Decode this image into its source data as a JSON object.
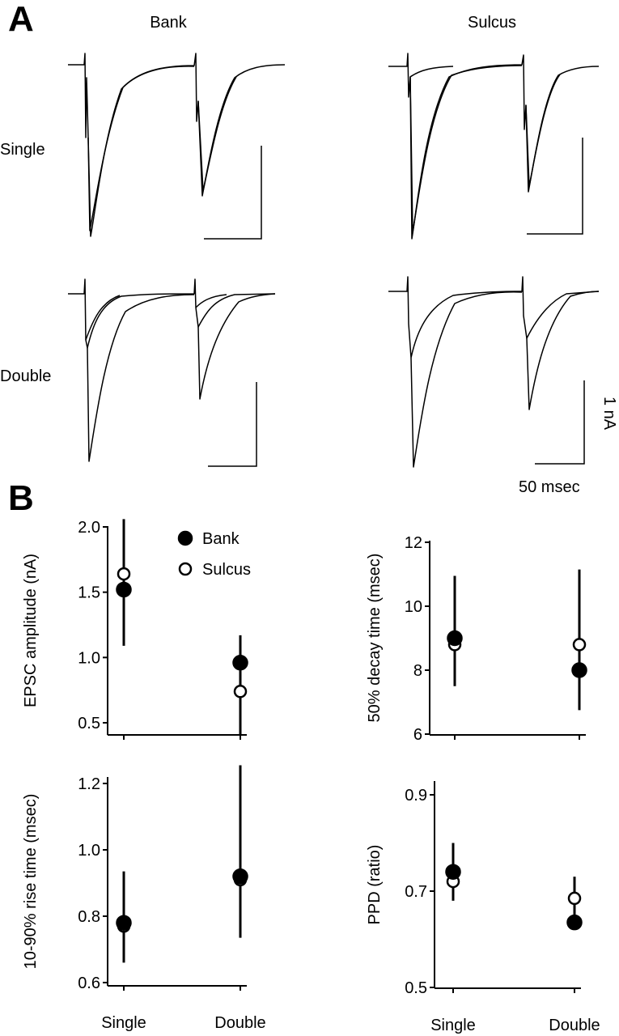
{
  "panel_a": {
    "label": "A",
    "column_labels": [
      "Bank",
      "Sulcus"
    ],
    "row_labels": [
      "Single",
      "Double"
    ],
    "scale_bar": {
      "y_label": "1 nA",
      "x_label": "50 msec"
    }
  },
  "panel_b": {
    "label": "B"
  },
  "legend": [
    "Bank",
    "Sulcus"
  ],
  "chart_data": [
    {
      "type": "scatter",
      "ylabel": "EPSC amplitude (nA)",
      "categories": [
        "Single",
        "Double"
      ],
      "ylim": [
        0.4,
        2.1
      ],
      "yticks": [
        "0.5",
        "1.0",
        "1.5",
        "2.0"
      ],
      "series": [
        {
          "name": "Bank",
          "marker": "filled",
          "values": [
            1.52,
            0.96
          ],
          "err_low": [
            1.09,
            0.4
          ],
          "err_high": [
            2.06,
            1.17
          ]
        },
        {
          "name": "Sulcus",
          "marker": "open",
          "values": [
            1.64,
            0.74
          ],
          "err_low": [
            1.09,
            0.4
          ],
          "err_high": [
            2.06,
            1.17
          ]
        }
      ]
    },
    {
      "type": "scatter",
      "ylabel": "50% decay time (msec)",
      "categories": [
        "Single",
        "Double"
      ],
      "ylim": [
        6,
        12
      ],
      "yticks": [
        "6",
        "8",
        "10",
        "12"
      ],
      "series": [
        {
          "name": "Bank",
          "marker": "filled",
          "values": [
            9.0,
            8.0
          ],
          "err_low": [
            7.5,
            6.75
          ],
          "err_high": [
            10.95,
            11.15
          ]
        },
        {
          "name": "Sulcus",
          "marker": "open",
          "values": [
            8.8,
            8.8
          ],
          "err_low": [
            7.5,
            6.75
          ],
          "err_high": [
            10.95,
            11.15
          ]
        }
      ]
    },
    {
      "type": "scatter",
      "ylabel": "10-90% rise time (msec)",
      "categories": [
        "Single",
        "Double"
      ],
      "ylim": [
        0.6,
        1.25
      ],
      "yticks": [
        "0.6",
        "0.8",
        "1.0",
        "1.2"
      ],
      "series": [
        {
          "name": "Bank",
          "marker": "filled",
          "values": [
            0.78,
            0.92
          ],
          "err_low": [
            0.66,
            0.735
          ],
          "err_high": [
            0.935,
            1.255
          ]
        },
        {
          "name": "Sulcus",
          "marker": "open",
          "values": [
            0.77,
            0.91
          ],
          "err_low": [
            0.66,
            0.735
          ],
          "err_high": [
            0.935,
            1.255
          ]
        }
      ]
    },
    {
      "type": "scatter",
      "ylabel": "PPD (ratio)",
      "categories": [
        "Single",
        "Double"
      ],
      "ylim": [
        0.5,
        0.9
      ],
      "yticks": [
        "0.5",
        "0.7",
        "0.9"
      ],
      "series": [
        {
          "name": "Bank",
          "marker": "filled",
          "values": [
            0.74,
            0.635
          ],
          "err_low": [
            0.68,
            0.635
          ],
          "err_high": [
            0.8,
            0.73
          ]
        },
        {
          "name": "Sulcus",
          "marker": "open",
          "values": [
            0.72,
            0.685
          ],
          "err_low": [
            0.68,
            0.635
          ],
          "err_high": [
            0.8,
            0.73
          ]
        }
      ]
    }
  ]
}
